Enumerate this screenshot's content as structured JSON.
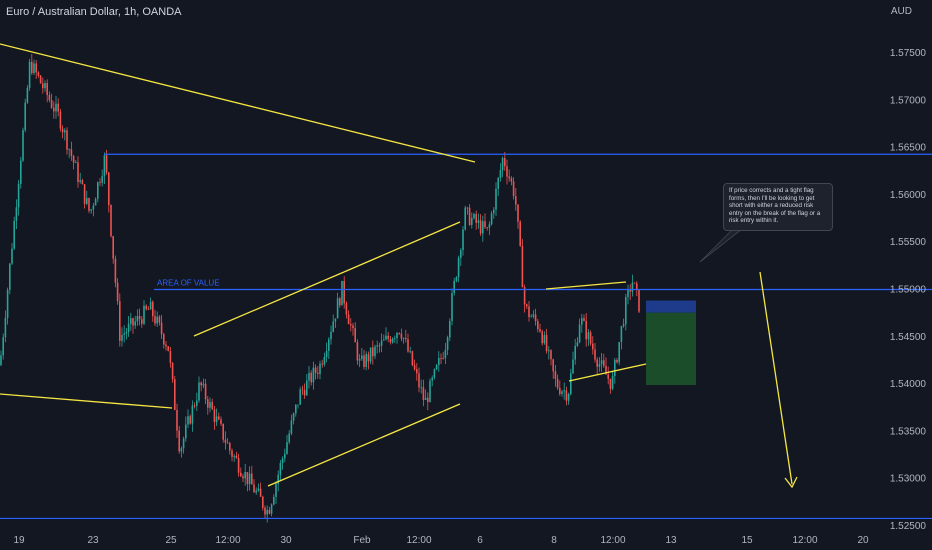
{
  "header": {
    "title": "Euro / Australian Dollar, 1h, OANDA",
    "currency": "AUD"
  },
  "annotations": {
    "area_of_value": "AREA OF VALUE",
    "note": "If price corrects and a tight flag forms, then I'll be looking to get short with either a reduced risk entry on the break of the flag or a risk entry within it."
  },
  "colors": {
    "background": "#131722",
    "up_candle": "#26a69a",
    "down_candle": "#ef5350",
    "level_line": "#2962ff",
    "trend_line": "#f5e642",
    "stop_zone": "#1e3a8a",
    "target_zone": "#1b4d2a"
  },
  "chart_data": {
    "type": "candlestick",
    "instrument": "EUR/AUD",
    "timeframe": "1h",
    "ylim": [
      1.52,
      1.58
    ],
    "y_ticks": [
      "1.57500",
      "1.57000",
      "1.56500",
      "1.56000",
      "1.55500",
      "1.55000",
      "1.54500",
      "1.54000",
      "1.53500",
      "1.53000",
      "1.52500"
    ],
    "x_ticks": [
      "19",
      "23",
      "25",
      "12:00",
      "30",
      "Feb",
      "12:00",
      "6",
      "8",
      "12:00",
      "13",
      "15",
      "12:00",
      "20"
    ],
    "horizontal_levels": [
      1.5643,
      1.55,
      1.5258
    ],
    "price_path_key_points": [
      [
        0,
        1.542
      ],
      [
        30,
        1.574
      ],
      [
        60,
        1.568
      ],
      [
        90,
        1.558
      ],
      [
        105,
        1.564
      ],
      [
        120,
        1.545
      ],
      [
        150,
        1.548
      ],
      [
        168,
        1.544
      ],
      [
        180,
        1.533
      ],
      [
        200,
        1.54
      ],
      [
        230,
        1.533
      ],
      [
        268,
        1.5265
      ],
      [
        300,
        1.539
      ],
      [
        320,
        1.542
      ],
      [
        342,
        1.55
      ],
      [
        360,
        1.542
      ],
      [
        400,
        1.546
      ],
      [
        425,
        1.538
      ],
      [
        445,
        1.544
      ],
      [
        465,
        1.558
      ],
      [
        488,
        1.556
      ],
      [
        503,
        1.564
      ],
      [
        515,
        1.56
      ],
      [
        525,
        1.548
      ],
      [
        540,
        1.546
      ],
      [
        556,
        1.54
      ],
      [
        568,
        1.539
      ],
      [
        580,
        1.547
      ],
      [
        600,
        1.542
      ],
      [
        612,
        1.54
      ],
      [
        625,
        1.548
      ],
      [
        632,
        1.551
      ],
      [
        640,
        1.548
      ]
    ],
    "position": {
      "entry": 1.5485,
      "stop": 1.55,
      "target": 1.54
    }
  }
}
